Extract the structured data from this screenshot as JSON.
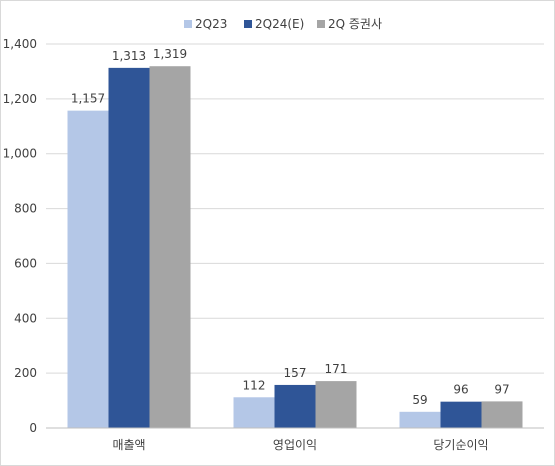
{
  "chart_data": {
    "type": "bar",
    "categories": [
      "매출액",
      "영업이익",
      "당기순이익"
    ],
    "series": [
      {
        "name": "2Q23",
        "values": [
          1157,
          112,
          59
        ],
        "color": "#b4c7e7"
      },
      {
        "name": "2Q24(E)",
        "values": [
          1313,
          157,
          96
        ],
        "color": "#2f5597"
      },
      {
        "name": "2Q 증권사",
        "values": [
          1319,
          171,
          97
        ],
        "color": "#a5a5a5"
      }
    ],
    "ylim": [
      0,
      1400
    ],
    "yticks": [
      "0",
      "200",
      "400",
      "600",
      "800",
      "1,000",
      "1,200",
      "1,400"
    ],
    "ytick_values": [
      0,
      200,
      400,
      600,
      800,
      1000,
      1200,
      1400
    ],
    "data_labels": [
      [
        "1,157",
        "112",
        "59"
      ],
      [
        "1,313",
        "157",
        "96"
      ],
      [
        "1,319",
        "171",
        "97"
      ]
    ],
    "grid": true,
    "legend_position": "top-center"
  },
  "colors": {
    "grid": "#d9d9d9",
    "axis": "#bfbfbf",
    "text": "#404040"
  }
}
